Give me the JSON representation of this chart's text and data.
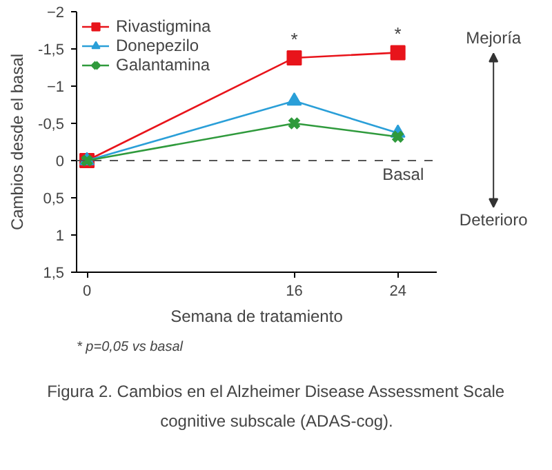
{
  "chart_data": {
    "type": "line",
    "title": "Figura 2. Cambios en el Alzheimer Disease Assessment Scale cognitive subscale (ADAS-cog).",
    "xlabel": "Semana de tratamiento",
    "ylabel": "Cambios desde el basal",
    "x": [
      0,
      16,
      24
    ],
    "series": [
      {
        "name": "Rivastigmina",
        "color": "#e8141b",
        "marker": "square",
        "values": [
          0,
          -1.38,
          -1.45
        ]
      },
      {
        "name": "Donepezilo",
        "color": "#2a9fd8",
        "marker": "triangle",
        "values": [
          0,
          -0.8,
          -0.37
        ]
      },
      {
        "name": "Galantamina",
        "color": "#2f9a3c",
        "marker": "cross",
        "values": [
          0,
          -0.5,
          -0.32
        ]
      }
    ],
    "xlim": [
      -0.8,
      27
    ],
    "xticks": [
      0,
      16,
      24
    ],
    "ylim": [
      1.5,
      -2
    ],
    "yticks": [
      -2,
      {
        "value": -1.5,
        "label": "-1,5"
      },
      -1,
      {
        "value": -0.5,
        "label": "-0,5"
      },
      0,
      {
        "value": 0.5,
        "label": "0,5"
      },
      1,
      {
        "value": 1.5,
        "label": "1,5"
      }
    ],
    "ref_lines": [
      {
        "axis": "y",
        "value": 0,
        "label": "Basal",
        "color": "#555555",
        "line_style": "dashed"
      }
    ],
    "annotations": [
      {
        "text": "*",
        "x": 16,
        "y": -1.38
      },
      {
        "text": "*",
        "x": 24,
        "y": -1.45
      },
      "Mejoría",
      "Deterioro",
      "* p=0,05 vs basal"
    ],
    "grid": false,
    "legend": "top left",
    "line_style": "solid"
  }
}
